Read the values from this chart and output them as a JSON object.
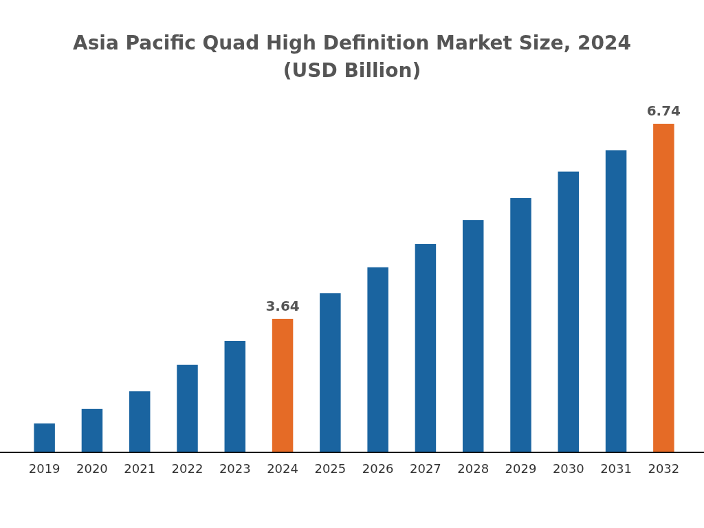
{
  "chart_data": {
    "type": "bar",
    "title": "Asia Pacific Quad High Definition Market Size, 2024 (USD Billion)",
    "categories": [
      "2019",
      "2020",
      "2021",
      "2022",
      "2023",
      "2024",
      "2025",
      "2026",
      "2027",
      "2028",
      "2029",
      "2030",
      "2031",
      "2032"
    ],
    "values": [
      1.98,
      2.21,
      2.49,
      2.91,
      3.29,
      3.64,
      4.05,
      4.46,
      4.83,
      5.21,
      5.56,
      5.98,
      6.32,
      6.74
    ],
    "colors": [
      "#1a64a0",
      "#1a64a0",
      "#1a64a0",
      "#1a64a0",
      "#1a64a0",
      "#e56b26",
      "#1a64a0",
      "#1a64a0",
      "#1a64a0",
      "#1a64a0",
      "#1a64a0",
      "#1a64a0",
      "#1a64a0",
      "#e56b26"
    ],
    "value_labels": [
      null,
      null,
      null,
      null,
      null,
      "3.64",
      null,
      null,
      null,
      null,
      null,
      null,
      null,
      "6.74"
    ],
    "ylim": [
      1.52,
      6.74
    ]
  }
}
